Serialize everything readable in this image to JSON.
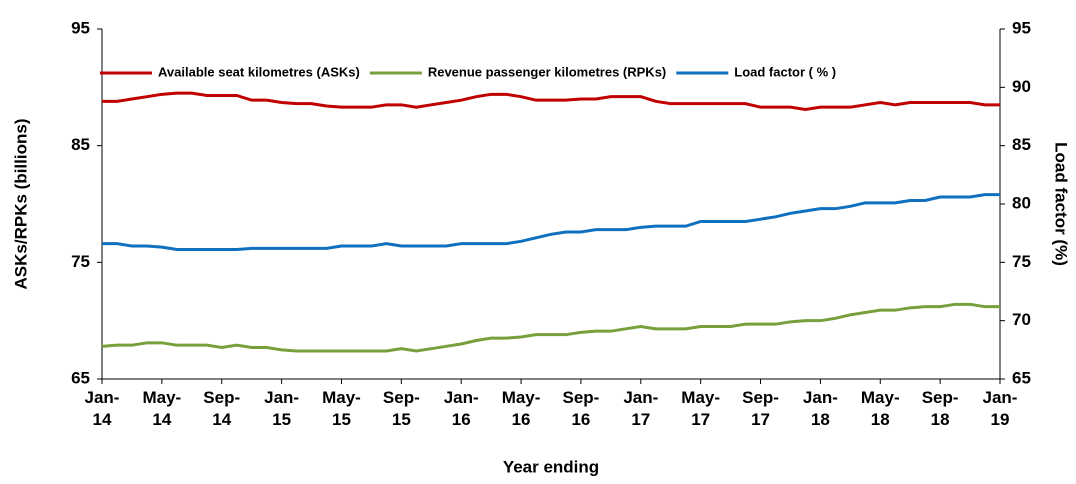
{
  "chart_data": {
    "type": "line",
    "x_title": "Year ending",
    "y_title": "ASKs/RPKs (billions)",
    "y2_title": "Load  factor (%)",
    "categories": [
      "Jan-14",
      null,
      null,
      null,
      "May-14",
      null,
      null,
      null,
      "Sep-14",
      null,
      null,
      null,
      "Jan-15",
      null,
      null,
      null,
      "May-15",
      null,
      null,
      null,
      "Sep-15",
      null,
      null,
      null,
      "Jan-16",
      null,
      null,
      null,
      "May-16",
      null,
      null,
      null,
      "Sep-16",
      null,
      null,
      null,
      "Jan-17",
      null,
      null,
      null,
      "May-17",
      null,
      null,
      null,
      "Sep-17",
      null,
      null,
      null,
      "Jan-18",
      null,
      null,
      null,
      "May-18",
      null,
      null,
      null,
      "Sep-18",
      null,
      null,
      null,
      "Jan-19"
    ],
    "series": [
      {
        "name": "Available seat kilometres (ASKs)",
        "color": "#c00000",
        "values": [
          88.8,
          88.8,
          89.0,
          89.2,
          89.4,
          89.5,
          89.5,
          89.3,
          89.3,
          89.3,
          88.9,
          88.9,
          88.7,
          88.6,
          88.6,
          88.4,
          88.3,
          88.3,
          88.3,
          88.5,
          88.5,
          88.3,
          88.5,
          88.7,
          88.9,
          89.2,
          89.4,
          89.4,
          89.2,
          88.9,
          88.9,
          88.9,
          89.0,
          89.0,
          89.2,
          89.2,
          89.2,
          88.8,
          88.6,
          88.6,
          88.6,
          88.6,
          88.6,
          88.6,
          88.3,
          88.3,
          88.3,
          88.1,
          88.3,
          88.3,
          88.3,
          88.5,
          88.7,
          88.5,
          88.7,
          88.7,
          88.7,
          88.7,
          88.7,
          88.5,
          88.5
        ]
      },
      {
        "name": "Revenue passenger kilometres (RPKs)",
        "color": "#77a03c",
        "values": [
          67.8,
          67.9,
          67.9,
          68.1,
          68.1,
          67.9,
          67.9,
          67.9,
          67.7,
          67.9,
          67.7,
          67.7,
          67.5,
          67.4,
          67.4,
          67.4,
          67.4,
          67.4,
          67.4,
          67.4,
          67.6,
          67.4,
          67.6,
          67.8,
          68.0,
          68.3,
          68.5,
          68.5,
          68.6,
          68.8,
          68.8,
          68.8,
          69.0,
          69.1,
          69.1,
          69.3,
          69.5,
          69.3,
          69.3,
          69.3,
          69.5,
          69.5,
          69.5,
          69.7,
          69.7,
          69.7,
          69.9,
          70.0,
          70.0,
          70.2,
          70.5,
          70.7,
          70.9,
          70.9,
          71.1,
          71.2,
          71.2,
          71.4,
          71.4,
          71.2,
          71.2
        ]
      },
      {
        "name": "Load factor ( % )",
        "color": "#1070c0",
        "axis": "y2",
        "values": [
          76.6,
          76.6,
          76.4,
          76.4,
          76.3,
          76.1,
          76.1,
          76.1,
          76.1,
          76.1,
          76.2,
          76.2,
          76.2,
          76.2,
          76.2,
          76.2,
          76.4,
          76.4,
          76.4,
          76.6,
          76.4,
          76.4,
          76.4,
          76.4,
          76.6,
          76.6,
          76.6,
          76.6,
          76.8,
          77.1,
          77.4,
          77.6,
          77.6,
          77.8,
          77.8,
          77.8,
          78.0,
          78.1,
          78.1,
          78.1,
          78.5,
          78.5,
          78.5,
          78.5,
          78.7,
          78.9,
          79.2,
          79.4,
          79.6,
          79.6,
          79.8,
          80.1,
          80.1,
          80.1,
          80.3,
          80.3,
          80.6,
          80.6,
          80.6,
          80.8,
          80.8
        ]
      }
    ],
    "ylim": [
      65,
      95
    ],
    "yticks": [
      65,
      75,
      85,
      95
    ],
    "y2lim": [
      65,
      95
    ],
    "y2ticks": [
      65,
      70,
      75,
      80,
      85,
      90,
      95
    ],
    "legend": "top",
    "grid": false
  }
}
